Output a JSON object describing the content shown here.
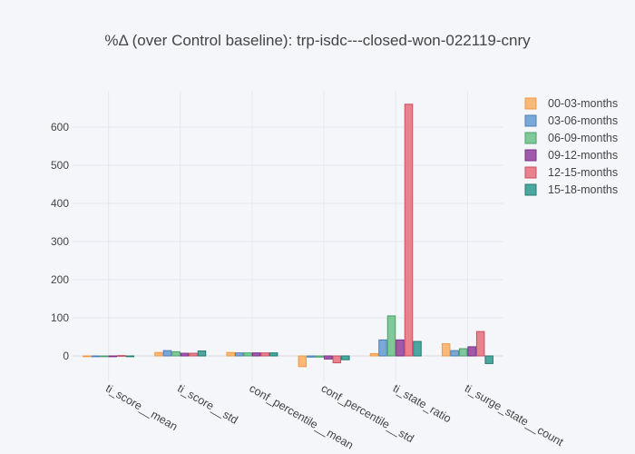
{
  "chart_data": {
    "type": "bar",
    "title": "%Δ (over Control baseline): trp-isdc---closed-won-022119-cnry",
    "xlabel": "",
    "ylabel": "",
    "ylim": [
      -40,
      690
    ],
    "yticks": [
      0,
      100,
      200,
      300,
      400,
      500,
      600
    ],
    "grid": true,
    "legend_position": "right",
    "categories": [
      "ti_score__mean",
      "ti_score__std",
      "conf_percentile__mean",
      "conf_percentile__std",
      "ti_state_ratio",
      "ti_surge_state__count"
    ],
    "series": [
      {
        "name": "00-03-months",
        "color": "#f8b878",
        "stroke": "#f29a42",
        "values": [
          -1,
          9,
          9,
          -28,
          6,
          32
        ]
      },
      {
        "name": "03-06-months",
        "color": "#7aa8d6",
        "stroke": "#4a7fb8",
        "values": [
          -2,
          14,
          8,
          -3,
          42,
          14
        ]
      },
      {
        "name": "06-09-months",
        "color": "#7fc898",
        "stroke": "#48a068",
        "values": [
          -2,
          11,
          8,
          -3,
          105,
          19
        ]
      },
      {
        "name": "09-12-months",
        "color": "#a05aac",
        "stroke": "#7a2e88",
        "values": [
          -2,
          7,
          8,
          -8,
          42,
          24
        ]
      },
      {
        "name": "12-15-months",
        "color": "#e8828e",
        "stroke": "#cc4e5e",
        "values": [
          1,
          7,
          8,
          -18,
          660,
          64
        ]
      },
      {
        "name": "15-18-months",
        "color": "#4aa8a0",
        "stroke": "#227a72",
        "values": [
          -2,
          13,
          8,
          -10,
          38,
          -20
        ]
      }
    ]
  }
}
